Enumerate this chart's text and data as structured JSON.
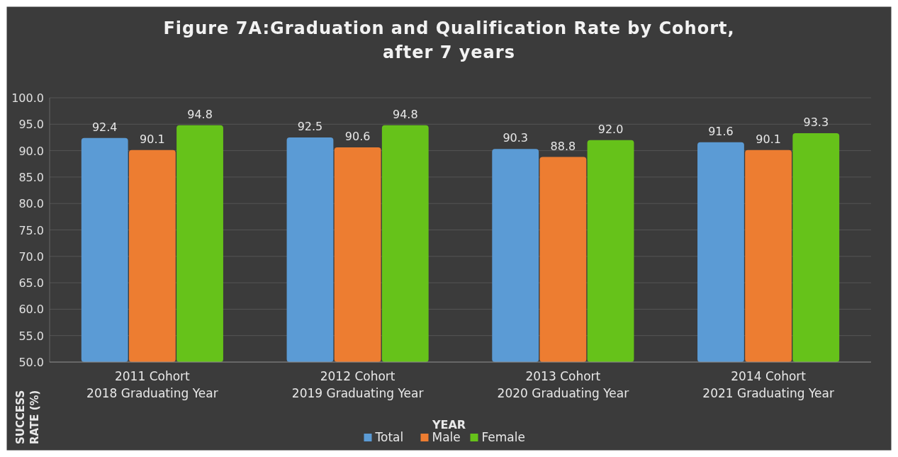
{
  "chart_data": {
    "type": "bar",
    "title": "Figure 7A:Graduation and Qualification Rate by Cohort,\nafter 7 years",
    "xlabel": "YEAR",
    "ylabel": "SUCCESS RATE (%)",
    "categories": [
      "2011 Cohort\n2018 Graduating Year",
      "2012 Cohort\n2019 Graduating Year",
      "2013 Cohort\n2020 Graduating Year",
      "2014 Cohort\n2021 Graduating Year"
    ],
    "series": [
      {
        "name": "Total",
        "color": "#5b9bd5",
        "values": [
          92.4,
          92.5,
          90.3,
          91.6
        ],
        "value_labels": [
          "92.4",
          "92.5",
          "90.3",
          "91.6"
        ]
      },
      {
        "name": "Male",
        "color": "#ed7d31",
        "values": [
          90.1,
          90.6,
          88.8,
          90.1
        ],
        "value_labels": [
          "90.1",
          "90.6",
          "88.8",
          "90.1"
        ]
      },
      {
        "name": "Female",
        "color": "#66c21a",
        "values": [
          94.8,
          94.8,
          92.0,
          93.3
        ],
        "value_labels": [
          "94.8",
          "94.8",
          "92.0",
          "93.3"
        ]
      }
    ],
    "ylim": [
      50,
      100
    ],
    "yticks": [
      {
        "value": 50,
        "label": "50.0"
      },
      {
        "value": 55,
        "label": "55.0"
      },
      {
        "value": 60,
        "label": "60.0"
      },
      {
        "value": 65,
        "label": "65.0"
      },
      {
        "value": 70,
        "label": "70.0"
      },
      {
        "value": 75,
        "label": "75.0"
      },
      {
        "value": 80,
        "label": "80.0"
      },
      {
        "value": 85,
        "label": "85.0"
      },
      {
        "value": 90,
        "label": "90.0"
      },
      {
        "value": 95,
        "label": "95.0"
      },
      {
        "value": 100,
        "label": "100.0"
      }
    ],
    "grid": "y",
    "legend": "bottom"
  }
}
